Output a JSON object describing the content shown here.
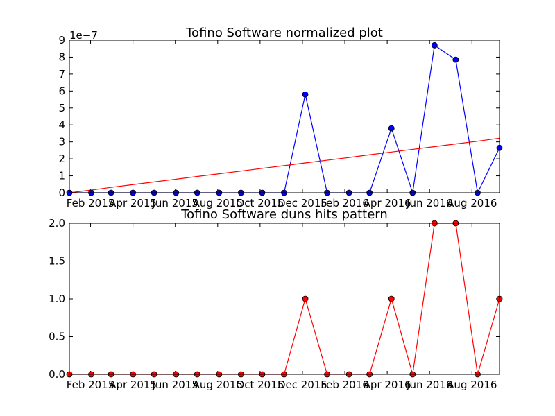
{
  "chart_data": [
    {
      "type": "line",
      "title": "Tofino Software normalized plot",
      "offset_text": "1e−7",
      "xlabel": "",
      "ylabel": "",
      "ylim": [
        0,
        9
      ],
      "yticks": [
        "0",
        "1",
        "2",
        "3",
        "4",
        "5",
        "6",
        "7",
        "8",
        "9"
      ],
      "xtick_labels": [
        "Feb 2015",
        "Apr 2015",
        "Jun 2015",
        "Aug 2015",
        "Oct 2015",
        "Dec 2015",
        "Feb 2016",
        "Apr 2016",
        "Jun 2016",
        "Aug 2016"
      ],
      "x": [
        "2015-01-01",
        "2015-02-01",
        "2015-03-01",
        "2015-04-01",
        "2015-05-01",
        "2015-06-01",
        "2015-07-01",
        "2015-08-01",
        "2015-09-01",
        "2015-10-01",
        "2015-11-01",
        "2015-12-01",
        "2016-01-01",
        "2016-02-01",
        "2016-03-01",
        "2016-04-01",
        "2016-05-01",
        "2016-06-01",
        "2016-07-01",
        "2016-08-01",
        "2016-09-01"
      ],
      "series": [
        {
          "values": [
            0,
            0,
            0,
            0,
            0,
            0,
            0,
            0,
            0,
            0,
            0,
            5.8,
            0,
            0,
            0,
            3.8,
            0,
            8.7,
            7.85,
            0,
            2.65
          ],
          "color": "#0000ff",
          "marker": "circle"
        },
        {
          "values": [
            0,
            0.16,
            0.32,
            0.48,
            0.64,
            0.8,
            0.96,
            1.12,
            1.28,
            1.44,
            1.6,
            1.76,
            1.92,
            2.08,
            2.24,
            2.4,
            2.56,
            2.72,
            2.88,
            3.04,
            3.22
          ],
          "color": "#ff0000",
          "marker": "none"
        }
      ],
      "grid": false
    },
    {
      "type": "line",
      "title": "Tofino Software duns hits pattern",
      "xlabel": "",
      "ylabel": "",
      "ylim": [
        0,
        2
      ],
      "yticks": [
        "0.0",
        "0.5",
        "1.0",
        "1.5",
        "2.0"
      ],
      "xtick_labels": [
        "Feb 2015",
        "Apr 2015",
        "Jun 2015",
        "Aug 2015",
        "Oct 2015",
        "Dec 2015",
        "Feb 2016",
        "Apr 2016",
        "Jun 2016",
        "Aug 2016"
      ],
      "x": [
        "2015-01-01",
        "2015-02-01",
        "2015-03-01",
        "2015-04-01",
        "2015-05-01",
        "2015-06-01",
        "2015-07-01",
        "2015-08-01",
        "2015-09-01",
        "2015-10-01",
        "2015-11-01",
        "2015-12-01",
        "2016-01-01",
        "2016-02-01",
        "2016-03-01",
        "2016-04-01",
        "2016-05-01",
        "2016-06-01",
        "2016-07-01",
        "2016-08-01",
        "2016-09-01"
      ],
      "series": [
        {
          "values": [
            0,
            0,
            0,
            0,
            0,
            0,
            0,
            0,
            0,
            0,
            0,
            1,
            0,
            0,
            0,
            1,
            0,
            2,
            2,
            0,
            1
          ],
          "color": "#ff0000",
          "marker": "circle"
        }
      ],
      "grid": false
    }
  ]
}
